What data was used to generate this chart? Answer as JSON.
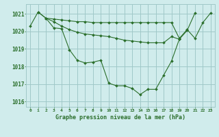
{
  "title": "Graphe pression niveau de la mer (hPa)",
  "bg_color": "#d0ecec",
  "grid_color": "#a0c8c8",
  "line_color": "#2a6e2a",
  "ylim": [
    1015.7,
    1021.55
  ],
  "yticks": [
    1016,
    1017,
    1018,
    1019,
    1020,
    1021
  ],
  "xlim": [
    -0.5,
    23.5
  ],
  "series1_x": [
    0,
    1,
    2,
    3,
    4,
    5,
    6,
    7,
    8,
    9,
    10,
    11,
    12,
    13,
    14,
    15,
    16,
    17,
    18,
    19,
    20,
    21,
    22,
    23
  ],
  "series1_y": [
    1020.3,
    1021.1,
    1020.75,
    1020.2,
    1020.15,
    1018.95,
    1018.35,
    1018.2,
    1018.25,
    1018.35,
    1017.05,
    1016.9,
    1016.9,
    1016.75,
    1016.4,
    1016.7,
    1016.7,
    1017.5,
    1018.3,
    1019.55,
    1020.05,
    1021.05,
    null,
    null
  ],
  "series2_x": [
    2,
    3,
    4,
    5,
    6,
    7,
    8,
    9,
    10,
    11,
    12,
    13,
    14,
    15,
    16,
    17,
    18,
    19,
    20,
    21,
    22,
    23
  ],
  "series2_y": [
    1020.75,
    1020.7,
    1020.65,
    1020.6,
    1020.55,
    1020.55,
    1020.5,
    1020.5,
    1020.5,
    1020.5,
    1020.5,
    1020.5,
    1020.5,
    1020.5,
    1020.5,
    1020.5,
    1020.5,
    1019.6,
    1020.1,
    1019.6,
    1020.5,
    1021.05
  ],
  "series3_x": [
    1,
    2,
    3,
    4,
    5,
    6,
    7,
    8,
    9,
    10,
    11,
    12,
    13,
    14,
    15,
    16,
    17,
    18,
    19
  ],
  "series3_y": [
    1021.1,
    1020.75,
    1020.55,
    1020.3,
    1020.1,
    1019.95,
    1019.85,
    1019.8,
    1019.75,
    1019.7,
    1019.6,
    1019.5,
    1019.45,
    1019.4,
    1019.35,
    1019.35,
    1019.35,
    1019.7,
    1019.55
  ]
}
